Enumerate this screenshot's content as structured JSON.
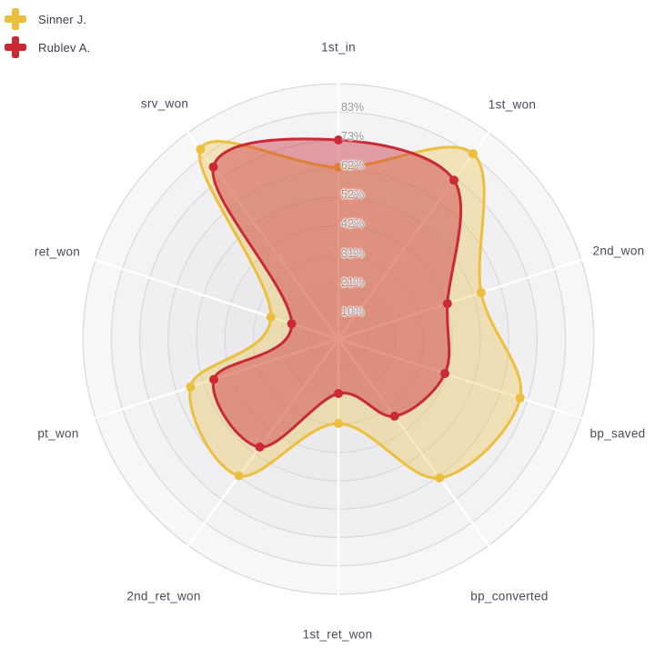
{
  "page": {
    "background": "#ffffff"
  },
  "legend": {
    "position": "top-left",
    "items": [
      {
        "label": "Sinner J.",
        "color": "#ecbf3e",
        "marker": "plus-icon"
      },
      {
        "label": "Rublev A.",
        "color": "#ca2936",
        "marker": "plus-icon"
      }
    ]
  },
  "chart_data": {
    "type": "radar",
    "title": "",
    "categories": [
      "1st_in",
      "1st_won",
      "2nd_won",
      "bp_saved",
      "bp_converted",
      "1st_ret_won",
      "2nd_ret_won",
      "pt_won",
      "ret_won",
      "srv_won"
    ],
    "series": [
      {
        "name": "Sinner J.",
        "color": "#ecbf3e",
        "fill_opacity": 0.33,
        "values": [
          63,
          84,
          55,
          70,
          63,
          31,
          62,
          57,
          26,
          86
        ]
      },
      {
        "name": "Rublev A.",
        "color": "#ca2936",
        "fill_opacity": 0.42,
        "values": [
          73,
          72,
          42,
          41,
          35,
          20,
          49,
          48,
          18,
          78
        ]
      }
    ],
    "units": "%",
    "axis": {
      "min": 0,
      "max": 93.6,
      "tick_step": 10.4,
      "rings": 9
    },
    "ticks": [
      "83%",
      "73%",
      "62%",
      "52%",
      "42%",
      "31%",
      "21%",
      "10%"
    ],
    "start_angle_deg": 90,
    "direction": "clockwise",
    "smoothed": true,
    "grid": {
      "band_colors_outer_to_inner": [
        "#f7f7f8",
        "#f3f3f5",
        "#f0f0f2",
        "#eeeef0",
        "#ececee",
        "#eaeaec",
        "#e9e9eb",
        "#e8e8ea",
        "#e7e7e9"
      ],
      "ring_stroke": "#d8d8da",
      "spoke_color": "#ffffff"
    }
  }
}
